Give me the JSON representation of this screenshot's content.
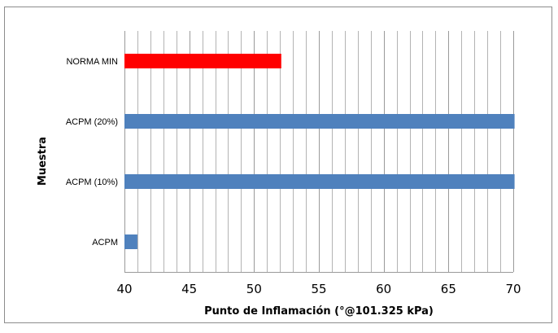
{
  "chart_data": {
    "type": "bar",
    "orientation": "horizontal",
    "categories": [
      "ACPM",
      "ACPM (10%)",
      "ACPM (20%)",
      "NORMA MIN"
    ],
    "values": [
      41,
      70.1,
      70.1,
      52.1
    ],
    "bar_colors": [
      "#4f81bd",
      "#4f81bd",
      "#4f81bd",
      "#ff0000"
    ],
    "xlabel": "Punto de Inflamación (°@101.325  kPa)",
    "ylabel": "Muestra",
    "xlim": [
      40,
      70
    ],
    "x_ticks": [
      "40",
      "45",
      "50",
      "55",
      "60",
      "65",
      "70"
    ],
    "minor_grid_step": 1,
    "grid": true,
    "legend": "none"
  }
}
